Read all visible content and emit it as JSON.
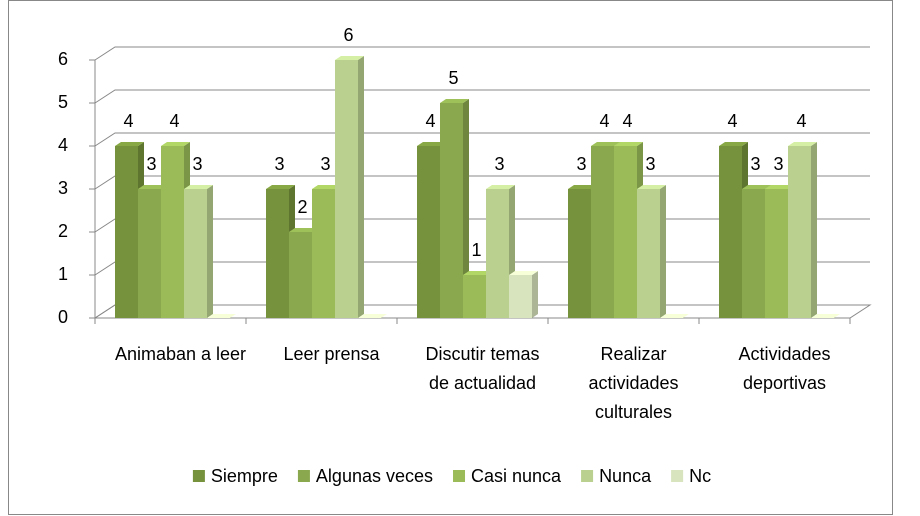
{
  "chart_data": {
    "type": "bar3d",
    "categories": [
      "Animaban a leer",
      "Leer prensa",
      "Discutir temas de actualidad",
      "Realizar actividades culturales",
      "Actividades deportivas"
    ],
    "series": [
      {
        "name": "Siempre",
        "color": "#76923c",
        "values": [
          4,
          3,
          4,
          3,
          4
        ]
      },
      {
        "name": "Algunas veces",
        "color": "#8aa84e",
        "values": [
          3,
          2,
          5,
          4,
          3
        ]
      },
      {
        "name": "Casi nunca",
        "color": "#9bbb59",
        "values": [
          4,
          3,
          1,
          4,
          3
        ]
      },
      {
        "name": "Nunca",
        "color": "#b9d08f",
        "values": [
          3,
          6,
          3,
          3,
          4
        ]
      },
      {
        "name": "Nc",
        "color": "#d7e4bd",
        "values": [
          0,
          0,
          1,
          0,
          0
        ],
        "show_labels": false
      }
    ],
    "ylim": [
      0,
      6
    ],
    "yticks": [
      0,
      1,
      2,
      3,
      4,
      5,
      6
    ],
    "grid": true,
    "legend": "bottom"
  }
}
